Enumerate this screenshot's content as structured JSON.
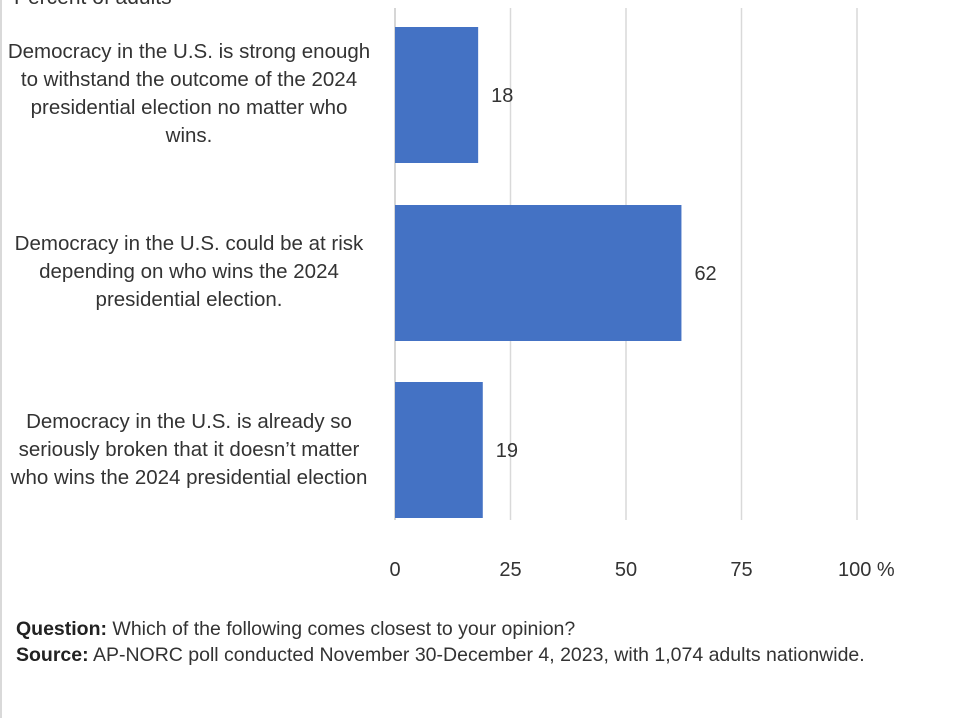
{
  "subtitle": "Percent of adults",
  "chart_data": {
    "type": "bar",
    "orientation": "horizontal",
    "categories": [
      "Democracy in the U.S. is strong enough to withstand the outcome of the 2024 presidential election no matter who wins.",
      "Democracy in the U.S. could be at risk depending on who wins the 2024 presidential election.",
      "Democracy in the U.S. is already so seriously broken that it doesn’t matter who wins the 2024 presidential election"
    ],
    "values": [
      18,
      62,
      19
    ],
    "data_labels": [
      "18",
      "62",
      "19"
    ],
    "xlim": [
      0,
      100
    ],
    "x_ticks": [
      "0",
      "25",
      "50",
      "75",
      "100 %"
    ],
    "tick_values": [
      0,
      25,
      50,
      75,
      100
    ],
    "grid": true,
    "bar_color": "#4472c4",
    "grid_color": "#d9d9d9"
  },
  "notes": {
    "question_label": "Question:",
    "question_text": " Which of the following comes closest to your opinion?",
    "source_label": "Source:",
    "source_text": " AP-NORC poll conducted November 30-December 4, 2023, with 1,074 adults nationwide."
  }
}
